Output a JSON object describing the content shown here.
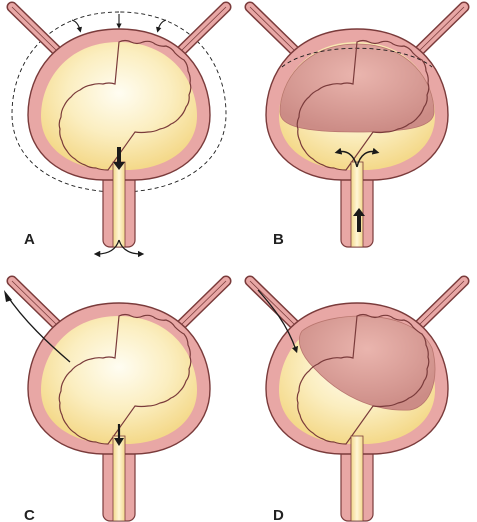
{
  "panels": [
    {
      "id": "a",
      "label": "A"
    },
    {
      "id": "b",
      "label": "B"
    },
    {
      "id": "c",
      "label": "C"
    },
    {
      "id": "d",
      "label": "D"
    }
  ],
  "colors": {
    "wall_outer": "#e8a7a5",
    "wall_line": "#7a3b3b",
    "urine_center": "#fffbea",
    "urine_edge": "#f6dc8e",
    "balloon_light": "#e4a8a2",
    "balloon_dark": "#cf8f8a",
    "arrow": "#1a1a1a",
    "background": "#ffffff"
  },
  "icons": [
    "inward-pressure-arrows",
    "outflow-arrow",
    "catheter-tube",
    "distended-outline"
  ]
}
